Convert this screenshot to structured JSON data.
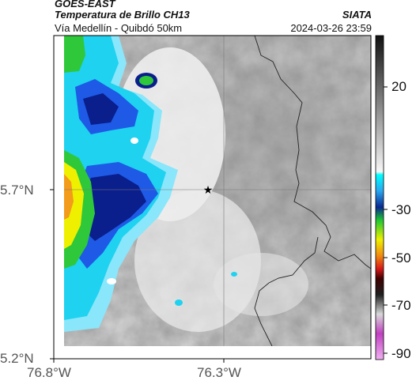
{
  "header": {
    "satellite": "GOES-EAST",
    "product": "Temperatura de Brillo CH13",
    "region": "Vía Medellín - Quibdó 50km",
    "organization": "SIATA",
    "timestamp": "2024-03-26 23:59"
  },
  "map": {
    "lat_labels": [
      "5.7°N",
      "5.2°N"
    ],
    "lon_labels": [
      "76.8°W",
      "76.3°W"
    ],
    "marker": "star",
    "colors": {
      "cold_dark_blue": "#0a1e8c",
      "blue": "#1e5ae6",
      "cyan": "#1ed2f0",
      "light_cyan": "#8ae6fa",
      "green": "#2ec83a",
      "yellow": "#eef000",
      "orange": "#f39b1a",
      "warm_gray": "#a8a8a8"
    }
  },
  "colorbar": {
    "tick_labels": [
      "20",
      "-30",
      "-50",
      "-70",
      "-90"
    ]
  }
}
